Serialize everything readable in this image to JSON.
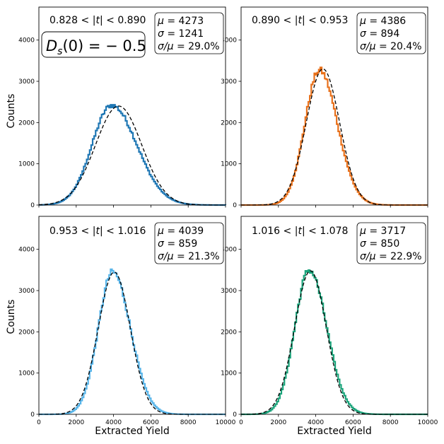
{
  "chart_data": {
    "type": "histogram-grid",
    "x_tick_labels": [
      "0",
      "2000",
      "4000",
      "6000",
      "8000",
      "10000"
    ],
    "y_tick_labels": [
      "0",
      "1000",
      "2000",
      "3000",
      "4000"
    ],
    "xlim": [
      0,
      10000
    ],
    "ylim": [
      0,
      4800
    ],
    "x_ticks": [
      0,
      2000,
      4000,
      6000,
      8000,
      10000
    ],
    "y_ticks": [
      0,
      1000,
      2000,
      3000,
      4000
    ],
    "xlabel": "Extracted Yield",
    "ylabel": "Counts",
    "fit_style": "black dashed gaussian",
    "annotation": "D_s(0) = − 0.5",
    "annotation_display": "= − 0.5",
    "panels": [
      {
        "t_range": "0.828 < |t| < 0.890",
        "t_low": "0.828",
        "t_high": "0.890",
        "mu": "4273",
        "sigma": "1241",
        "ratio": "29.0%",
        "mu_label": "= 4273",
        "sigma_label": "= 1241",
        "ratio_label": "= 29.0%",
        "color": "#1f77b4",
        "hist_peak_x": 3900,
        "hist_peak_y": 2420,
        "hist_sigma_left": 1050,
        "hist_sigma_right": 1350,
        "fit_mu": 4273,
        "fit_sigma": 1241,
        "fit_amplitude": 2400
      },
      {
        "t_range": "0.890 < |t| < 0.953",
        "t_low": "0.890",
        "t_high": "0.953",
        "mu": "4386",
        "sigma": "894",
        "ratio": "20.4%",
        "mu_label": "= 4386",
        "sigma_label": "= 894",
        "ratio_label": "= 20.4%",
        "color": "#e8701a",
        "hist_peak_x": 4200,
        "hist_peak_y": 3270,
        "hist_sigma_left": 780,
        "hist_sigma_right": 960,
        "fit_mu": 4386,
        "fit_sigma": 894,
        "fit_amplitude": 3300
      },
      {
        "t_range": "0.953 < |t| < 1.016",
        "t_low": "0.953",
        "t_high": "1.016",
        "mu": "4039",
        "sigma": "859",
        "ratio": "21.3%",
        "mu_label": "= 4039",
        "sigma_label": "= 859",
        "ratio_label": "= 21.3%",
        "color": "#56b4e9",
        "hist_peak_x": 3950,
        "hist_peak_y": 3450,
        "hist_sigma_left": 770,
        "hist_sigma_right": 960,
        "fit_mu": 4039,
        "fit_sigma": 859,
        "fit_amplitude": 3450
      },
      {
        "t_range": "1.016 < |t| < 1.078",
        "t_low": "1.016",
        "t_high": "1.078",
        "mu": "3717",
        "sigma": "850",
        "ratio": "22.9%",
        "mu_label": "= 3717",
        "sigma_label": "= 850",
        "ratio_label": "= 22.9%",
        "color": "#1aa37a",
        "hist_peak_x": 3650,
        "hist_peak_y": 3500,
        "hist_sigma_left": 770,
        "hist_sigma_right": 940,
        "fit_mu": 3717,
        "fit_sigma": 850,
        "fit_amplitude": 3480
      }
    ]
  }
}
